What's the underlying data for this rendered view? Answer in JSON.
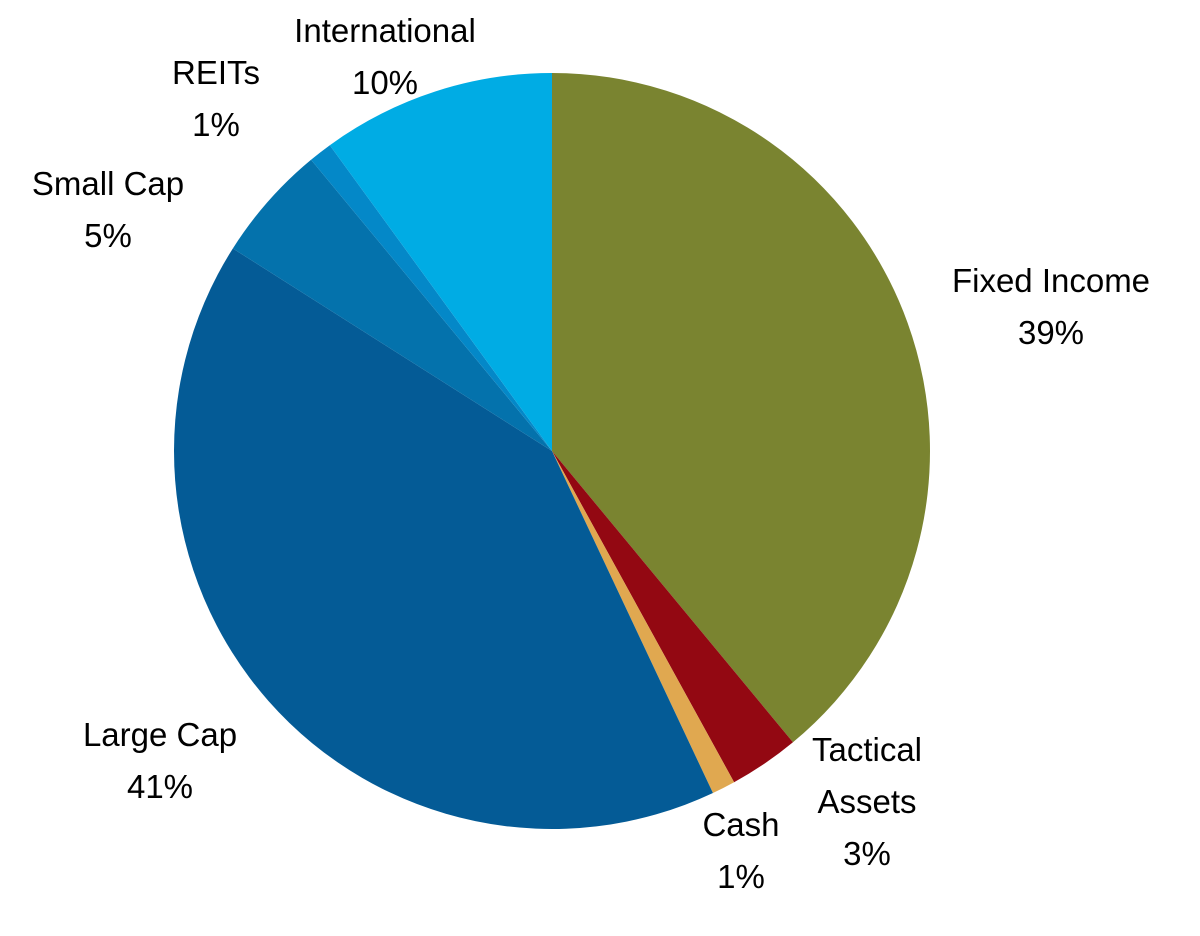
{
  "chart_data": {
    "type": "pie",
    "title": "",
    "start_angle_deg": 0,
    "direction": "clockwise",
    "slices": [
      {
        "label": [
          "Fixed Income"
        ],
        "value": 39,
        "value_label": "39%",
        "color": "#7A8430"
      },
      {
        "label": [
          "Tactical",
          "Assets"
        ],
        "value": 3,
        "value_label": "3%",
        "color": "#930812"
      },
      {
        "label": [
          "Cash"
        ],
        "value": 1,
        "value_label": "1%",
        "color": "#E0A850"
      },
      {
        "label": [
          "Large Cap"
        ],
        "value": 41,
        "value_label": "41%",
        "color": "#045B96"
      },
      {
        "label": [
          "Small Cap"
        ],
        "value": 5,
        "value_label": "5%",
        "color": "#0472AC"
      },
      {
        "label": [
          "REITs"
        ],
        "value": 1,
        "value_label": "1%",
        "color": "#0488C8"
      },
      {
        "label": [
          "International"
        ],
        "value": 10,
        "value_label": "10%",
        "color": "#00ACE4"
      }
    ]
  }
}
